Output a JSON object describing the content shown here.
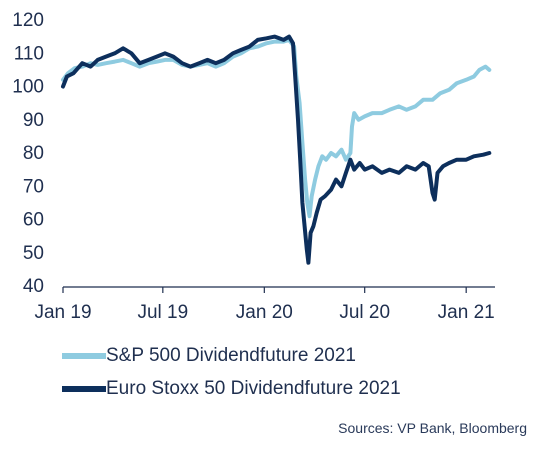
{
  "chart_data": {
    "type": "line",
    "title": "",
    "xlabel": "",
    "ylabel": "",
    "ylim": [
      40,
      120
    ],
    "yticks": [
      40,
      50,
      60,
      70,
      80,
      90,
      100,
      110,
      120
    ],
    "xlim": [
      "2019-01-01",
      "2021-02-15"
    ],
    "xticks": [
      {
        "date": "2019-01-01",
        "label": "Jan 19"
      },
      {
        "date": "2019-07-01",
        "label": "Jul 19"
      },
      {
        "date": "2020-01-01",
        "label": "Jan 20"
      },
      {
        "date": "2020-07-01",
        "label": "Jul 20"
      },
      {
        "date": "2021-01-01",
        "label": "Jan 21"
      }
    ],
    "grid": false,
    "legend_placement": "bottom",
    "series": [
      {
        "name": "S&P 500 Dividendfuture 2021",
        "color": "#8ecbe0",
        "points": [
          [
            "2019-01-01",
            102
          ],
          [
            "2019-01-10",
            104
          ],
          [
            "2019-01-22",
            105.5
          ],
          [
            "2019-02-05",
            106
          ],
          [
            "2019-02-20",
            107
          ],
          [
            "2019-03-05",
            106.5
          ],
          [
            "2019-03-20",
            107
          ],
          [
            "2019-04-05",
            107.5
          ],
          [
            "2019-04-20",
            108
          ],
          [
            "2019-05-05",
            107
          ],
          [
            "2019-05-20",
            106
          ],
          [
            "2019-06-05",
            107
          ],
          [
            "2019-06-20",
            107.5
          ],
          [
            "2019-07-05",
            108
          ],
          [
            "2019-07-20",
            108
          ],
          [
            "2019-08-05",
            106.5
          ],
          [
            "2019-08-20",
            106
          ],
          [
            "2019-09-05",
            106.5
          ],
          [
            "2019-09-20",
            107
          ],
          [
            "2019-10-05",
            106
          ],
          [
            "2019-10-20",
            107
          ],
          [
            "2019-11-05",
            109
          ],
          [
            "2019-11-20",
            110
          ],
          [
            "2019-12-05",
            111.5
          ],
          [
            "2019-12-20",
            112
          ],
          [
            "2020-01-05",
            113
          ],
          [
            "2020-01-20",
            113.5
          ],
          [
            "2020-02-05",
            113.5
          ],
          [
            "2020-02-15",
            114
          ],
          [
            "2020-02-24",
            112
          ],
          [
            "2020-02-28",
            103
          ],
          [
            "2020-03-05",
            95
          ],
          [
            "2020-03-10",
            83
          ],
          [
            "2020-03-15",
            72
          ],
          [
            "2020-03-19",
            65
          ],
          [
            "2020-03-23",
            61
          ],
          [
            "2020-03-27",
            67
          ],
          [
            "2020-04-02",
            72
          ],
          [
            "2020-04-08",
            76
          ],
          [
            "2020-04-15",
            79
          ],
          [
            "2020-04-22",
            78
          ],
          [
            "2020-05-01",
            80
          ],
          [
            "2020-05-10",
            79
          ],
          [
            "2020-05-20",
            81
          ],
          [
            "2020-05-28",
            78
          ],
          [
            "2020-06-05",
            80
          ],
          [
            "2020-06-08",
            88
          ],
          [
            "2020-06-12",
            92
          ],
          [
            "2020-06-20",
            90
          ],
          [
            "2020-07-01",
            91
          ],
          [
            "2020-07-15",
            92
          ],
          [
            "2020-08-01",
            92
          ],
          [
            "2020-08-15",
            93
          ],
          [
            "2020-09-01",
            94
          ],
          [
            "2020-09-15",
            93
          ],
          [
            "2020-10-01",
            94
          ],
          [
            "2020-10-15",
            96
          ],
          [
            "2020-11-01",
            96
          ],
          [
            "2020-11-15",
            98
          ],
          [
            "2020-12-01",
            99
          ],
          [
            "2020-12-15",
            101
          ],
          [
            "2021-01-01",
            102
          ],
          [
            "2021-01-15",
            103
          ],
          [
            "2021-01-25",
            105
          ],
          [
            "2021-02-05",
            106
          ],
          [
            "2021-02-12",
            105
          ]
        ]
      },
      {
        "name": "Euro Stoxx 50 Dividendfuture 2021",
        "color": "#0d2f5c",
        "points": [
          [
            "2019-01-01",
            100
          ],
          [
            "2019-01-08",
            103
          ],
          [
            "2019-01-20",
            104
          ],
          [
            "2019-02-05",
            107
          ],
          [
            "2019-02-20",
            106
          ],
          [
            "2019-03-05",
            108
          ],
          [
            "2019-03-20",
            109
          ],
          [
            "2019-04-05",
            110
          ],
          [
            "2019-04-20",
            111.5
          ],
          [
            "2019-05-05",
            110
          ],
          [
            "2019-05-20",
            107
          ],
          [
            "2019-06-05",
            108
          ],
          [
            "2019-06-20",
            109
          ],
          [
            "2019-07-05",
            110
          ],
          [
            "2019-07-20",
            109
          ],
          [
            "2019-08-05",
            107
          ],
          [
            "2019-08-20",
            106
          ],
          [
            "2019-09-05",
            107
          ],
          [
            "2019-09-20",
            108
          ],
          [
            "2019-10-05",
            107
          ],
          [
            "2019-10-20",
            108
          ],
          [
            "2019-11-05",
            110
          ],
          [
            "2019-11-20",
            111
          ],
          [
            "2019-12-05",
            112
          ],
          [
            "2019-12-20",
            114
          ],
          [
            "2020-01-05",
            114.5
          ],
          [
            "2020-01-20",
            115
          ],
          [
            "2020-02-05",
            114
          ],
          [
            "2020-02-15",
            115
          ],
          [
            "2020-02-22",
            113
          ],
          [
            "2020-02-26",
            103
          ],
          [
            "2020-03-02",
            90
          ],
          [
            "2020-03-06",
            78
          ],
          [
            "2020-03-10",
            65
          ],
          [
            "2020-03-14",
            58
          ],
          [
            "2020-03-18",
            51
          ],
          [
            "2020-03-21",
            47
          ],
          [
            "2020-03-25",
            56
          ],
          [
            "2020-03-30",
            58
          ],
          [
            "2020-04-05",
            62
          ],
          [
            "2020-04-12",
            66
          ],
          [
            "2020-04-20",
            67
          ],
          [
            "2020-05-01",
            69
          ],
          [
            "2020-05-10",
            72
          ],
          [
            "2020-05-20",
            70
          ],
          [
            "2020-05-28",
            74
          ],
          [
            "2020-06-05",
            78
          ],
          [
            "2020-06-12",
            75
          ],
          [
            "2020-06-22",
            77
          ],
          [
            "2020-07-01",
            75
          ],
          [
            "2020-07-15",
            76
          ],
          [
            "2020-08-01",
            74
          ],
          [
            "2020-08-15",
            75
          ],
          [
            "2020-09-01",
            74
          ],
          [
            "2020-09-15",
            76
          ],
          [
            "2020-10-01",
            75
          ],
          [
            "2020-10-15",
            77
          ],
          [
            "2020-10-25",
            76
          ],
          [
            "2020-11-01",
            68
          ],
          [
            "2020-11-05",
            66
          ],
          [
            "2020-11-10",
            74
          ],
          [
            "2020-11-20",
            76
          ],
          [
            "2020-12-01",
            77
          ],
          [
            "2020-12-15",
            78
          ],
          [
            "2021-01-01",
            78
          ],
          [
            "2021-01-15",
            79
          ],
          [
            "2021-02-01",
            79.5
          ],
          [
            "2021-02-12",
            80
          ]
        ]
      }
    ],
    "source": "Sources: VP Bank, Bloomberg"
  }
}
